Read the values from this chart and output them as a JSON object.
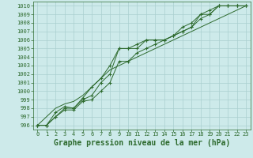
{
  "title": "Graphe pression niveau de la mer (hPa)",
  "hours": [
    0,
    1,
    2,
    3,
    4,
    5,
    6,
    7,
    8,
    9,
    10,
    11,
    12,
    13,
    14,
    15,
    16,
    17,
    18,
    19,
    20,
    21,
    22,
    23
  ],
  "ylim": [
    995.5,
    1010.5
  ],
  "yticks": [
    996,
    997,
    998,
    999,
    1000,
    1001,
    1002,
    1003,
    1004,
    1005,
    1006,
    1007,
    1008,
    1009,
    1010
  ],
  "line1": [
    996.0,
    996.0,
    997.0,
    998.0,
    998.0,
    999.0,
    999.5,
    1001.0,
    1002.0,
    1005.0,
    1005.0,
    1005.0,
    1006.0,
    1006.0,
    1006.0,
    1006.5,
    1007.0,
    1007.5,
    1009.0,
    1009.0,
    1010.0,
    1010.0,
    1010.0,
    1010.0
  ],
  "line2": [
    996.0,
    996.0,
    997.5,
    998.2,
    998.0,
    999.2,
    1000.5,
    1001.5,
    1003.0,
    1005.0,
    1005.0,
    1005.5,
    1006.0,
    1006.0,
    1006.0,
    1006.5,
    1007.5,
    1008.0,
    1009.0,
    1009.5,
    1010.0,
    1010.0,
    1010.0,
    1010.0
  ],
  "line3": [
    996.0,
    996.0,
    997.0,
    997.8,
    997.8,
    998.8,
    999.0,
    1000.0,
    1001.0,
    1003.5,
    1003.5,
    1004.5,
    1005.0,
    1005.5,
    1006.0,
    1006.5,
    1007.0,
    1007.5,
    1008.5,
    1009.0,
    1010.0,
    1010.0,
    1010.0,
    1010.0
  ],
  "line4": [
    996.0,
    997.0,
    998.0,
    998.5,
    998.8,
    999.5,
    1000.5,
    1001.5,
    1002.5,
    1003.0,
    1003.5,
    1004.0,
    1004.5,
    1005.0,
    1005.5,
    1006.0,
    1006.5,
    1007.0,
    1007.5,
    1008.0,
    1008.5,
    1009.0,
    1009.5,
    1010.0
  ],
  "line_color": "#2d6a2d",
  "bg_color": "#cdeaea",
  "grid_color": "#aacfcf",
  "marker": "+",
  "marker_size": 3,
  "marker_lw": 0.8,
  "line_width": 0.7,
  "title_fontsize": 7,
  "tick_fontsize": 5
}
